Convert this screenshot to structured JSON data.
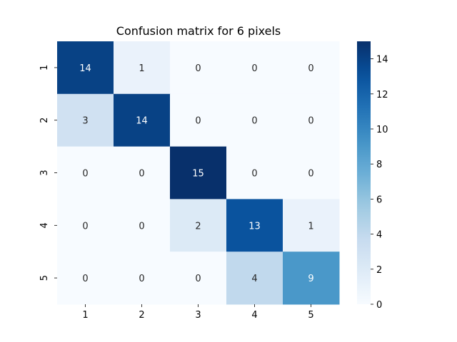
{
  "chart_data": {
    "type": "heatmap",
    "title": "Confusion matrix for 6 pixels",
    "xlabel": "",
    "ylabel": "",
    "x_labels": [
      "1",
      "2",
      "3",
      "4",
      "5"
    ],
    "y_labels": [
      "1",
      "2",
      "3",
      "4",
      "5"
    ],
    "matrix": [
      [
        14,
        1,
        0,
        0,
        0
      ],
      [
        3,
        14,
        0,
        0,
        0
      ],
      [
        0,
        0,
        15,
        0,
        0
      ],
      [
        0,
        0,
        2,
        13,
        1
      ],
      [
        0,
        0,
        0,
        4,
        9
      ]
    ],
    "colormap": "Blues",
    "vmin": 0,
    "vmax": 15,
    "colorbar_ticks": [
      0,
      2,
      4,
      6,
      8,
      10,
      12,
      14
    ],
    "colors": {
      "low": "#f7fbff",
      "high": "#08306b",
      "text_dark": "#262626",
      "text_light": "#ffffff"
    }
  }
}
